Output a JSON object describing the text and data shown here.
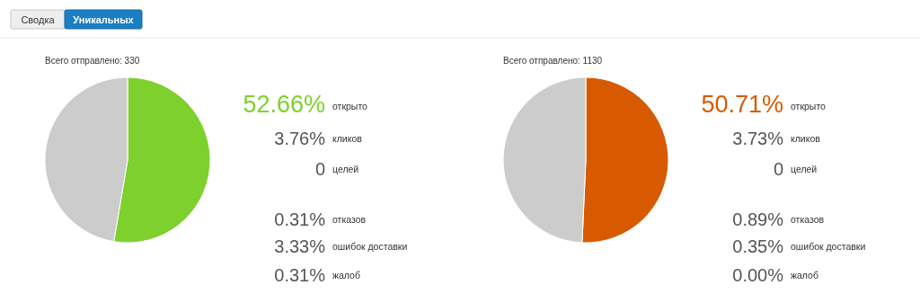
{
  "chart_data": [
    {
      "type": "other",
      "categories": [
        "Сводка",
        "Уникальных"
      ]
    },
    {
      "type": "pie",
      "title": "Всего отправлено: 330",
      "categories": [
        null,
        null
      ],
      "values": [
        52.66,
        47.34
      ],
      "colors": [
        "#7ed02c",
        "#cccccc"
      ]
    },
    {
      "type": "other",
      "categories": [
        "открыто",
        "кликов",
        "целей",
        "отказов",
        "ошибок доставки",
        "жалоб"
      ],
      "value_labels": [
        "52.66%",
        "3.76%",
        "0",
        "0.31%",
        "3.33%",
        "0.31%"
      ],
      "colors": [
        "#7ed02c",
        "#555555",
        "#555555",
        "#555555",
        "#555555",
        "#555555"
      ]
    },
    {
      "type": "pie",
      "title": "Всего отправлено: 1130",
      "categories": [
        null,
        null
      ],
      "values": [
        50.71,
        49.29
      ],
      "colors": [
        "#d85a00",
        "#cccccc"
      ]
    },
    {
      "type": "other",
      "categories": [
        "открыто",
        "кликов",
        "целей",
        "отказов",
        "ошибок доставки",
        "жалоб"
      ],
      "value_labels": [
        "50.71%",
        "3.73%",
        "0",
        "0.89%",
        "0.35%",
        "0.00%"
      ],
      "colors": [
        "#d85a00",
        "#555555",
        "#555555",
        "#555555",
        "#555555",
        "#555555"
      ]
    }
  ]
}
